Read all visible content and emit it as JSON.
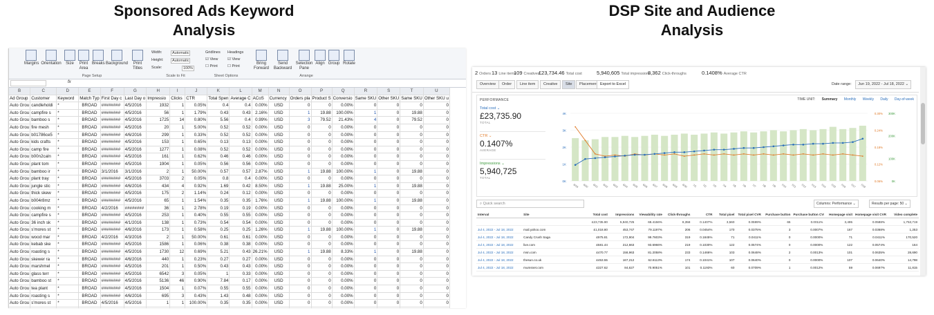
{
  "titles": {
    "left_line1": "Sponsored Ads Keyword",
    "left_line2": "Analysis",
    "right_line1": "DSP Site and Audience",
    "right_line2": "Analysis"
  },
  "spreadsheet": {
    "ribbon": {
      "buttons": [
        "Margins",
        "Orientation",
        "Size",
        "Print Area",
        "Breaks",
        "Background",
        "Print Titles",
        "Bring Forward",
        "Send Backward",
        "Selection Pane",
        "Align",
        "Group",
        "Rotate"
      ],
      "groups": [
        "Page Setup",
        "Scale to Fit",
        "Sheet Options",
        "Arrange"
      ],
      "scale_labels": [
        "Width:",
        "Height:",
        "Scale:"
      ],
      "scale_values": [
        "Automatic",
        "Automatic",
        "100%"
      ],
      "gridlines": "Gridlines",
      "headings": "Headings",
      "view": "View",
      "print": "Print"
    },
    "formula_fx": "fx",
    "column_letters": [
      "B",
      "C",
      "D",
      "E",
      "F",
      "G",
      "H",
      "I",
      "J",
      "K",
      "L",
      "M",
      "N",
      "O",
      "P",
      "Q",
      "R",
      "S",
      "T",
      "U"
    ],
    "headers": [
      "Ad Group",
      "Customer",
      "Keyword",
      "Match Typ",
      "First Day c",
      "Last Day o",
      "Impressio",
      "Clicks",
      "CTR",
      "Total Spen",
      "Average C",
      "ACoS",
      "Currency",
      "Orders pla",
      "Product S",
      "Conversio",
      "Same SKU",
      "Other SKU",
      "Same SKU",
      "Other SKU u"
    ],
    "rows": [
      [
        "Auto Grou",
        "candleholdi",
        "*",
        "BROAD",
        "########",
        "4/5/2016",
        "1932",
        "1",
        "0.05%",
        "0.4",
        "0.4",
        "0.00%",
        "USD",
        "0",
        "0",
        "0.00%",
        "0",
        "0",
        "0",
        "0"
      ],
      [
        "Auto Grou",
        "campfire s",
        "*",
        "BROAD",
        "########",
        "4/5/2016",
        "56",
        "1",
        "1.79%",
        "0.43",
        "0.43",
        "2.16%",
        "USD",
        "1",
        "19.88",
        "100.00%",
        "1",
        "0",
        "19.88",
        "0"
      ],
      [
        "Auto Grou",
        "bamboo s",
        "*",
        "BROAD",
        "########",
        "4/5/2016",
        "1725",
        "14",
        "0.80%",
        "5.56",
        "0.4",
        "0.99%",
        "USD",
        "3",
        "79.52",
        "21.43%",
        "4",
        "0",
        "79.52",
        "0"
      ],
      [
        "Auto Grou",
        "fire mesh",
        "*",
        "BROAD",
        "########",
        "4/5/2016",
        "20",
        "1",
        "5.00%",
        "0.52",
        "0.52",
        "0.00%",
        "USD",
        "0",
        "0",
        "0.00%",
        "0",
        "0",
        "0",
        "0"
      ],
      [
        "Auto Grou",
        "b01786ce5",
        "*",
        "BROAD",
        "########",
        "4/6/2016",
        "299",
        "1",
        "0.33%",
        "0.52",
        "0.52",
        "0.00%",
        "USD",
        "0",
        "0",
        "0.00%",
        "0",
        "0",
        "0",
        "0"
      ],
      [
        "Auto Grou",
        "kids crafts",
        "*",
        "BROAD",
        "########",
        "4/5/2016",
        "153",
        "1",
        "0.65%",
        "0.13",
        "0.13",
        "0.00%",
        "USD",
        "0",
        "0",
        "0.00%",
        "0",
        "0",
        "0",
        "0"
      ],
      [
        "Auto Grou",
        "camp fire",
        "*",
        "BROAD",
        "########",
        "4/5/2016",
        "1277",
        "1",
        "0.08%",
        "0.52",
        "0.52",
        "0.00%",
        "USD",
        "0",
        "0",
        "0.00%",
        "0",
        "0",
        "0",
        "0"
      ],
      [
        "Auto Grou",
        "b00n2caln",
        "*",
        "BROAD",
        "########",
        "4/5/2016",
        "161",
        "1",
        "0.62%",
        "0.46",
        "0.46",
        "0.00%",
        "USD",
        "0",
        "0",
        "0.00%",
        "0",
        "0",
        "0",
        "0"
      ],
      [
        "Auto Grou",
        "plant tom",
        "*",
        "BROAD",
        "########",
        "4/5/2016",
        "1904",
        "1",
        "0.05%",
        "0.56",
        "0.56",
        "0.00%",
        "USD",
        "0",
        "0",
        "0.00%",
        "0",
        "0",
        "0",
        "0"
      ],
      [
        "Auto Grou",
        "bamboo ir",
        "*",
        "BROAD",
        "3/1/2016",
        "3/1/2016",
        "2",
        "1",
        "50.00%",
        "0.57",
        "0.57",
        "2.87%",
        "USD",
        "1",
        "19.88",
        "100.00%",
        "1",
        "0",
        "19.88",
        "0"
      ],
      [
        "Auto Grou",
        "plant tray",
        "*",
        "BROAD",
        "########",
        "4/5/2016",
        "3703",
        "2",
        "0.05%",
        "0.8",
        "0.4",
        "0.00%",
        "USD",
        "0",
        "0",
        "0.00%",
        "0",
        "0",
        "0",
        "0"
      ],
      [
        "Auto Grou",
        "jungle stic",
        "*",
        "BROAD",
        "########",
        "4/6/2016",
        "434",
        "4",
        "0.92%",
        "1.69",
        "0.42",
        "8.50%",
        "USD",
        "1",
        "19.88",
        "25.00%",
        "1",
        "0",
        "19.88",
        "0"
      ],
      [
        "Auto Grou",
        "thick skew",
        "*",
        "BROAD",
        "########",
        "4/5/2016",
        "175",
        "2",
        "1.14%",
        "0.24",
        "0.12",
        "0.00%",
        "USD",
        "0",
        "0",
        "0.00%",
        "0",
        "0",
        "0",
        "0"
      ],
      [
        "Auto Grou",
        "b004r8mz",
        "*",
        "BROAD",
        "########",
        "4/5/2016",
        "65",
        "1",
        "1.54%",
        "0.35",
        "0.35",
        "1.76%",
        "USD",
        "1",
        "19.88",
        "100.00%",
        "1",
        "0",
        "19.88",
        "0"
      ],
      [
        "Auto Grou",
        "cooking m",
        "*",
        "BROAD",
        "4/2/2016",
        "########",
        "36",
        "1",
        "2.78%",
        "0.19",
        "0.19",
        "0.00%",
        "USD",
        "0",
        "0",
        "0.00%",
        "0",
        "0",
        "0",
        "0"
      ],
      [
        "Auto Grou",
        "campfire s",
        "*",
        "BROAD",
        "########",
        "4/5/2016",
        "253",
        "1",
        "0.40%",
        "0.55",
        "0.55",
        "0.00%",
        "USD",
        "0",
        "0",
        "0.00%",
        "0",
        "0",
        "0",
        "0"
      ],
      [
        "Auto Grou",
        "36 inch sk",
        "*",
        "BROAD",
        "########",
        "4/1/2016",
        "138",
        "1",
        "0.73%",
        "0.54",
        "0.54",
        "0.00%",
        "USD",
        "0",
        "0",
        "0.00%",
        "0",
        "0",
        "0",
        "0"
      ],
      [
        "Auto Grou",
        "s'mores st",
        "*",
        "BROAD",
        "########",
        "4/6/2016",
        "173",
        "1",
        "0.58%",
        "0.25",
        "0.25",
        "1.26%",
        "USD",
        "1",
        "19.88",
        "100.00%",
        "1",
        "0",
        "19.88",
        "0"
      ],
      [
        "Auto Grou",
        "wood mar",
        "*",
        "BROAD",
        "4/2/2016",
        "4/3/2016",
        "2",
        "1",
        "50.00%",
        "0.61",
        "0.61",
        "0.00%",
        "USD",
        "0",
        "0",
        "0.00%",
        "0",
        "0",
        "0",
        "0"
      ],
      [
        "Auto Grou",
        "kebab ske",
        "*",
        "BROAD",
        "########",
        "4/5/2016",
        "1586",
        "1",
        "0.06%",
        "0.38",
        "0.38",
        "0.00%",
        "USD",
        "0",
        "0",
        "0.00%",
        "0",
        "0",
        "0",
        "0"
      ],
      [
        "Auto Grou",
        "roasting s",
        "*",
        "BROAD",
        "########",
        "4/5/2016",
        "1730",
        "12",
        "0.69%",
        "5.21",
        "0.43",
        "26.21%",
        "USD",
        "1",
        "19.88",
        "8.33%",
        "1",
        "0",
        "19.88",
        "0"
      ],
      [
        "Auto Grou",
        "skewer ra",
        "*",
        "BROAD",
        "########",
        "4/6/2016",
        "440",
        "1",
        "0.23%",
        "0.27",
        "0.27",
        "0.00%",
        "USD",
        "0",
        "0",
        "0.00%",
        "0",
        "0",
        "0",
        "0"
      ],
      [
        "Auto Grou",
        "marshmel",
        "*",
        "BROAD",
        "########",
        "4/5/2016",
        "201",
        "1",
        "0.50%",
        "0.43",
        "0.43",
        "0.00%",
        "USD",
        "0",
        "0",
        "0.00%",
        "0",
        "0",
        "0",
        "0"
      ],
      [
        "Auto Grou",
        "glass terr",
        "*",
        "BROAD",
        "########",
        "4/5/2016",
        "6542",
        "3",
        "0.05%",
        "1",
        "0.33",
        "0.00%",
        "USD",
        "0",
        "0",
        "0.00%",
        "0",
        "0",
        "0",
        "0"
      ],
      [
        "Auto Grou",
        "bamboo st",
        "*",
        "BROAD",
        "########",
        "4/5/2016",
        "5136",
        "46",
        "0.90%",
        "7.84",
        "0.17",
        "0.00%",
        "USD",
        "0",
        "0",
        "0.00%",
        "0",
        "0",
        "0",
        "0"
      ],
      [
        "Auto Grou",
        "tea plant",
        "*",
        "BROAD",
        "########",
        "4/5/2016",
        "1504",
        "1",
        "0.07%",
        "0.55",
        "0.55",
        "0.00%",
        "USD",
        "0",
        "0",
        "0.00%",
        "0",
        "0",
        "0",
        "0"
      ],
      [
        "Auto Grou",
        "roasting s",
        "*",
        "BROAD",
        "########",
        "4/6/2016",
        "695",
        "3",
        "0.43%",
        "1.43",
        "0.48",
        "0.00%",
        "USD",
        "0",
        "0",
        "0.00%",
        "0",
        "0",
        "0",
        "0"
      ],
      [
        "Auto Grou",
        "s'mores st",
        "*",
        "BROAD",
        "4/5/2016",
        "4/5/2016",
        "1",
        "1",
        "100.00%",
        "0.35",
        "0.35",
        "0.00%",
        "USD",
        "0",
        "0",
        "0.00%",
        "0",
        "0",
        "0",
        "0"
      ],
      [
        "Auto Grou",
        "kebab ske",
        "*",
        "BROAD",
        "########",
        "4/5/2016",
        "1736",
        "1",
        "0.06%",
        "1.18",
        "1.18",
        "0.00%",
        "USD",
        "0",
        "0",
        "0.00%",
        "0",
        "0",
        "0",
        "0"
      ]
    ]
  },
  "dashboard": {
    "kpis": [
      {
        "value": "2",
        "label": "Orders"
      },
      {
        "value": "13",
        "label": "Line items"
      },
      {
        "value": "109",
        "label": "Creatives"
      },
      {
        "value": "£23,734.46",
        "label": "Total cost"
      },
      {
        "value": "5,940,605",
        "label": "Total impressions"
      },
      {
        "value": "8,362",
        "label": "Click-throughs"
      },
      {
        "value": "0.1408%",
        "label": "Average CTR"
      }
    ],
    "tabs": [
      "Overview",
      "Order",
      "Line item",
      "Creative",
      "Site",
      "Placement"
    ],
    "active_tab": "Site",
    "export_label": "Export to Excel",
    "date_range_label": "Date range:",
    "date_range_value": "Jun 19, 2022 - Jul 18, 2022",
    "performance_label": "PERFORMANCE",
    "time_unit_label": "TIME UNIT:",
    "time_units": [
      "Summary",
      "Monthly",
      "Weekly",
      "Daily",
      "Day-of-week"
    ],
    "metrics": [
      {
        "label": "Total cost",
        "value": "£23,735.90",
        "sub": "TOTAL",
        "color": "#2a6ebb"
      },
      {
        "label": "CTR",
        "value": "0.1407%",
        "sub": "AVERAGE",
        "color": "#e07b2a"
      },
      {
        "label": "Impressions",
        "value": "5,940,725",
        "sub": "TOTAL",
        "color": "#3c9a3c"
      }
    ],
    "chart": {
      "left_axis_ticks": [
        "4K",
        "3K",
        "2K",
        "1K",
        "0K"
      ],
      "right_axis1_ticks": [
        "0.30%",
        "0.24%",
        "0.18%",
        "0.12%",
        "0.06%"
      ],
      "right_axis2_ticks": [
        "300K",
        "200K",
        "100K",
        "0K"
      ],
      "x_labels": [
        "6/19",
        "6/20",
        "6/21",
        "6/22",
        "6/23",
        "6/24",
        "6/25",
        "6/26",
        "6/27",
        "6/28",
        "6/29",
        "6/30",
        "7/1",
        "7/2",
        "7/3",
        "7/4",
        "7/5",
        "7/6",
        "7/7",
        "7/8",
        "7/9",
        "7/10",
        "7/11",
        "7/12",
        "7/13",
        "7/14",
        "7/15",
        "7/16",
        "7/17",
        "7/18"
      ]
    },
    "chart_data": {
      "type": "line",
      "x": [
        "6/19",
        "6/20",
        "6/21",
        "6/22",
        "6/23",
        "6/24",
        "6/25",
        "6/26",
        "6/27",
        "6/28",
        "6/29",
        "6/30",
        "7/1",
        "7/2",
        "7/3",
        "7/4",
        "7/5",
        "7/6",
        "7/7",
        "7/8",
        "7/9",
        "7/10",
        "7/11",
        "7/12",
        "7/13",
        "7/14",
        "7/15",
        "7/16",
        "7/17",
        "7/18"
      ],
      "series": [
        {
          "name": "Total cost",
          "type": "line",
          "values": [
            0.95,
            1.3,
            1.35,
            1.4,
            1.45,
            1.5,
            1.55,
            1.55,
            1.6,
            1.65,
            1.7,
            1.7,
            1.75,
            1.8,
            1.85,
            1.85,
            1.9,
            1.95,
            1.95,
            2.0,
            2.05,
            2.1,
            2.15,
            2.15,
            2.2,
            2.2,
            2.25,
            2.25,
            2.3,
            2.5
          ]
        },
        {
          "name": "CTR",
          "type": "line",
          "values": [
            0.24,
            0.18,
            0.12,
            0.11,
            0.115,
            0.11,
            0.12,
            0.115,
            0.12,
            0.115,
            0.12,
            0.11,
            0.115,
            0.12,
            0.115,
            0.12,
            0.115,
            0.12,
            0.115,
            0.12,
            0.115,
            0.12,
            0.115,
            0.12,
            0.115,
            0.12,
            0.115,
            0.12,
            0.115,
            0.11
          ]
        },
        {
          "name": "Impressions",
          "type": "bar",
          "values": [
            190,
            180,
            185,
            195,
            195,
            200,
            195,
            200,
            205,
            200,
            205,
            210,
            205,
            210,
            215,
            210,
            215,
            220,
            215,
            220,
            225,
            220,
            225,
            230,
            225,
            230,
            240,
            230,
            235,
            245
          ]
        }
      ],
      "ylim_left": [
        0,
        4
      ],
      "ylim_right_ctr": [
        0,
        0.3
      ],
      "ylim_right_impr": [
        0,
        300
      ]
    },
    "search_placeholder": "Quick search",
    "columns_select": "Columns: Performance",
    "results_select": "Results per page: 50",
    "table_headers": [
      "Interval",
      "Site",
      "Total cost",
      "Impressions",
      "Viewability rate",
      "Click-throughs",
      "CTR",
      "Total pixel",
      "Total pixel CVR",
      "Purchase button",
      "Purchase button CVR",
      "Homepage visit",
      "Homepage visit CVR",
      "Video complete"
    ],
    "total_row": [
      "",
      "",
      "£23,735.90",
      "5,940,725",
      "68.4156%",
      "8,358",
      "0.1407%",
      "3,560",
      "0.0599%",
      "65",
      "0.0011%",
      "3,495",
      "0.0588%",
      "1,753,719"
    ],
    "rows": [
      [
        "Jul 4, 2022 - Jul 18, 2022",
        "mail.yahoo.com",
        "£1,018.80",
        "453,747",
        "79.1197%",
        "206",
        "0.0454%",
        "170",
        "0.0375%",
        "3",
        "0.0007%",
        "167",
        "0.0368%",
        "1,253"
      ],
      [
        "Jul 4, 2022 - Jul 18, 2022",
        "Candy Crush Saga",
        "£975.81",
        "172,904",
        "99.7603%",
        "319",
        "0.1845%",
        "71",
        "0.0411%",
        "0",
        "0.0000%",
        "71",
        "0.0411%",
        "170,520"
      ],
      [
        "Jul 4, 2022 - Jul 18, 2022",
        "live.com",
        "£581.44",
        "212,663",
        "93.6966%",
        "219",
        "0.1030%",
        "122",
        "0.0574%",
        "0",
        "0.0000%",
        "122",
        "0.0574%",
        "164"
      ],
      [
        "Jul 4, 2022 - Jul 18, 2022",
        "msn.com",
        "£470.77",
        "158,963",
        "81.2058%",
        "233",
        "0.1466%",
        "103",
        "0.0648%",
        "2",
        "0.0013%",
        "101",
        "0.0635%",
        "28,690"
      ],
      [
        "Jul 4, 2022 - Jul 18, 2022",
        "thesun.co.uk",
        "£453.55",
        "167,212",
        "62.6113%",
        "174",
        "0.1041%",
        "107",
        "0.0640%",
        "0",
        "0.0000%",
        "107",
        "0.0640%",
        "14,798"
      ],
      [
        "Jul 4, 2022 - Jul 18, 2022",
        "mumsnet.com",
        "£327.62",
        "84,627",
        "70.9051%",
        "101",
        "0.1193%",
        "60",
        "0.0709%",
        "1",
        "0.0012%",
        "59",
        "0.0697%",
        "11,815"
      ]
    ],
    "candy_sub": "ID: com.king.candycrushsaga"
  }
}
